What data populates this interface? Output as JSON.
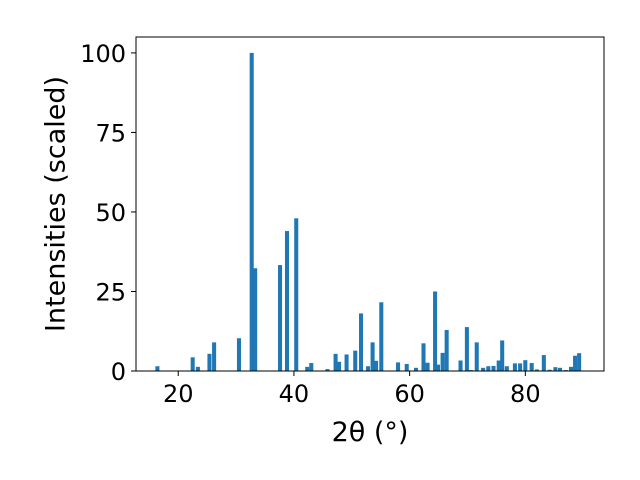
{
  "chart_data": {
    "type": "bar",
    "xlabel": "2θ (°)",
    "ylabel": "Intensities (scaled)",
    "xlim": [
      12.7,
      93.6
    ],
    "ylim": [
      0,
      105
    ],
    "xticks": [
      20,
      40,
      60,
      80
    ],
    "yticks": [
      0,
      25,
      50,
      75,
      100
    ],
    "bar_width": 0.7,
    "color": "#1f77b4",
    "grid": false,
    "legend": "none",
    "series": [
      {
        "x": [
          16.4,
          22.5,
          23.4,
          25.4,
          26.2,
          30.5,
          32.7,
          33.3,
          37.6,
          38.8,
          40.4,
          42.3,
          43.0,
          45.8,
          47.2,
          47.8,
          49.1,
          50.6,
          51.6,
          52.8,
          53.6,
          54.2,
          55.1,
          58.0,
          59.5,
          61.1,
          62.4,
          63.1,
          64.4,
          64.9,
          65.7,
          66.4,
          68.8,
          69.9,
          70.6,
          71.6,
          72.7,
          73.6,
          74.5,
          75.4,
          76.0,
          76.8,
          78.2,
          79.1,
          80.0,
          81.1,
          82.0,
          83.2,
          84.2,
          85.2,
          86.0,
          87.0,
          87.9,
          88.6,
          89.3
        ],
        "values": [
          1.5,
          4.3,
          1.3,
          5.4,
          9.0,
          10.3,
          100.0,
          32.3,
          33.3,
          44.0,
          48.0,
          1.3,
          2.5,
          0.6,
          5.4,
          2.9,
          5.2,
          6.4,
          18.1,
          1.5,
          9.0,
          3.2,
          21.6,
          2.7,
          2.2,
          1.0,
          8.7,
          2.6,
          25.0,
          2.0,
          5.7,
          12.9,
          3.3,
          13.8,
          0.3,
          9.0,
          1.0,
          1.5,
          1.6,
          3.3,
          9.6,
          1.5,
          2.4,
          2.4,
          3.4,
          2.5,
          0.5,
          5.0,
          0.4,
          1.2,
          1.0,
          0.3,
          1.3,
          4.8,
          5.6
        ]
      }
    ]
  }
}
